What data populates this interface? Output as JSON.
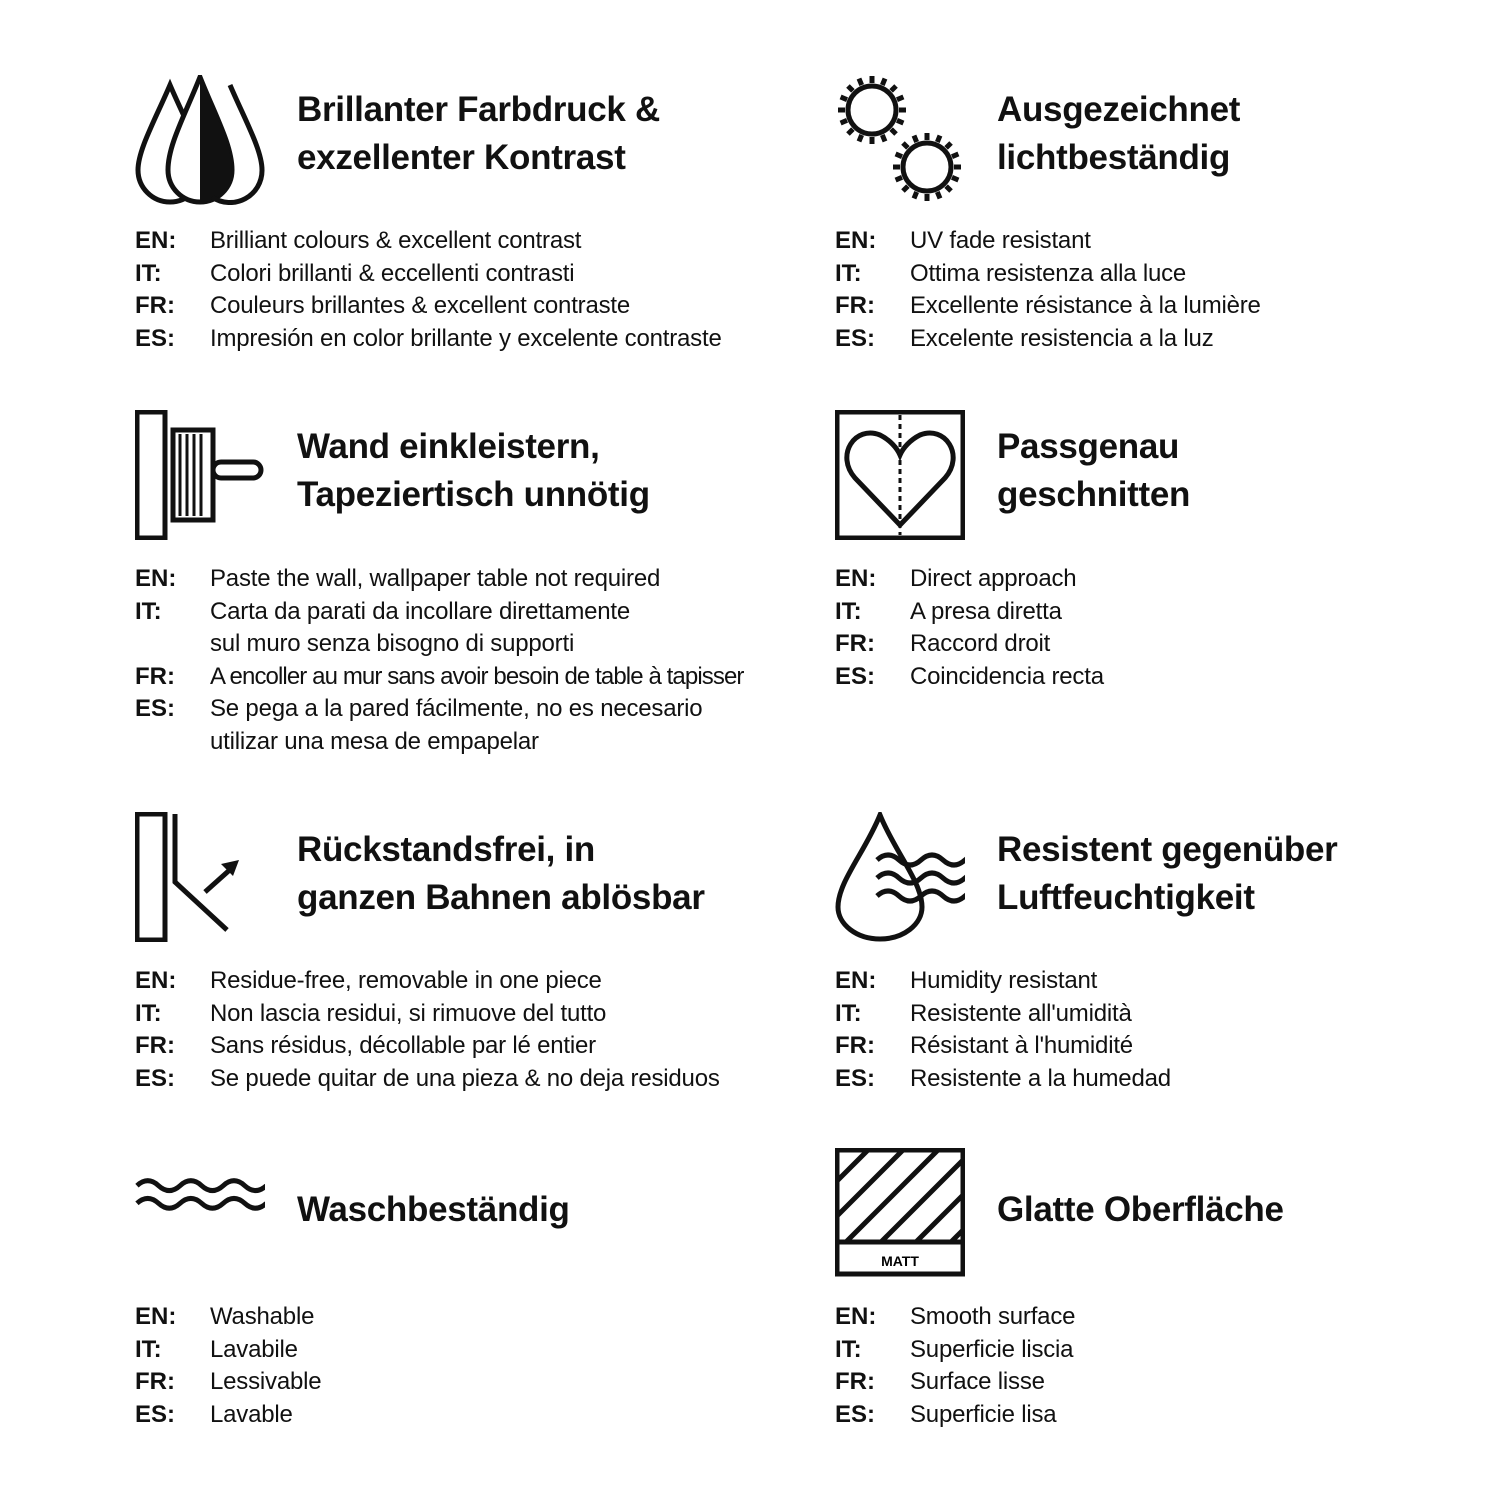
{
  "sections": [
    {
      "icon": "ink-drops-icon",
      "title": [
        "Brillanter Farbdruck &",
        "exzellenter Kontrast"
      ],
      "langs": [
        {
          "label": "EN:",
          "lines": [
            "Brilliant colours & excellent contrast"
          ]
        },
        {
          "label": "IT:",
          "lines": [
            "Colori brillanti & eccellenti contrasti"
          ]
        },
        {
          "label": "FR:",
          "lines": [
            "Couleurs brillantes & excellent contraste"
          ]
        },
        {
          "label": "ES:",
          "lines": [
            "Impresión en color brillante y excelente contraste"
          ]
        }
      ]
    },
    {
      "icon": "sun-gears-icon",
      "title": [
        "Ausgezeichnet",
        "lichtbeständig"
      ],
      "langs": [
        {
          "label": "EN:",
          "lines": [
            "UV fade resistant"
          ]
        },
        {
          "label": "IT:",
          "lines": [
            "Ottima resistenza alla luce"
          ]
        },
        {
          "label": "FR:",
          "lines": [
            "Excellente résistance à la lumière"
          ]
        },
        {
          "label": "ES:",
          "lines": [
            "Excelente resistencia a la luz"
          ]
        }
      ]
    },
    {
      "icon": "paste-brush-wall-icon",
      "title": [
        "Wand einkleistern,",
        "Tapeziertisch unnötig"
      ],
      "langs": [
        {
          "label": "EN:",
          "lines": [
            "Paste the wall, wallpaper table not required"
          ]
        },
        {
          "label": "IT:",
          "lines": [
            "Carta da parati da incollare direttamente",
            "sul muro senza bisogno di supporti"
          ]
        },
        {
          "label": "FR:",
          "lines": [
            "A encoller au mur sans avoir besoin de table à tapisser"
          ]
        },
        {
          "label": "ES:",
          "lines": [
            "Se pega a la pared fácilmente, no es necesario",
            "utilizar una mesa de empapelar"
          ]
        }
      ]
    },
    {
      "icon": "heart-match-icon",
      "title": [
        "Passgenau",
        "geschnitten"
      ],
      "langs": [
        {
          "label": "EN:",
          "lines": [
            "Direct approach"
          ]
        },
        {
          "label": "IT:",
          "lines": [
            "A presa diretta"
          ]
        },
        {
          "label": "FR:",
          "lines": [
            "Raccord droit"
          ]
        },
        {
          "label": "ES:",
          "lines": [
            "Coincidencia recta"
          ]
        }
      ]
    },
    {
      "icon": "peel-off-icon",
      "title": [
        "Rückstandsfrei, in",
        "ganzen Bahnen ablösbar"
      ],
      "langs": [
        {
          "label": "EN:",
          "lines": [
            "Residue-free, removable in one piece"
          ]
        },
        {
          "label": "IT:",
          "lines": [
            "Non lascia residui, si rimuove del tutto"
          ]
        },
        {
          "label": "FR:",
          "lines": [
            "Sans résidus, décollable par lé entier"
          ]
        },
        {
          "label": "ES:",
          "lines": [
            "Se puede quitar de una pieza & no deja residuos"
          ]
        }
      ]
    },
    {
      "icon": "humidity-drop-icon",
      "title": [
        "Resistent gegenüber",
        "Luftfeuchtigkeit"
      ],
      "langs": [
        {
          "label": "EN:",
          "lines": [
            "Humidity resistant"
          ]
        },
        {
          "label": "IT:",
          "lines": [
            "Resistente all'umidità"
          ]
        },
        {
          "label": "FR:",
          "lines": [
            "Résistant à l'humidité"
          ]
        },
        {
          "label": "ES:",
          "lines": [
            "Resistente a la humedad"
          ]
        }
      ]
    },
    {
      "icon": "waves-icon",
      "title": [
        "Waschbeständig"
      ],
      "langs": [
        {
          "label": "EN:",
          "lines": [
            "Washable"
          ]
        },
        {
          "label": "IT:",
          "lines": [
            "Lavabile"
          ]
        },
        {
          "label": "FR:",
          "lines": [
            "Lessivable"
          ]
        },
        {
          "label": "ES:",
          "lines": [
            "Lavable"
          ]
        }
      ]
    },
    {
      "icon": "matt-surface-icon",
      "icon_text": "MATT",
      "title": [
        "Glatte Oberfläche"
      ],
      "langs": [
        {
          "label": "EN:",
          "lines": [
            "Smooth surface"
          ]
        },
        {
          "label": "IT:",
          "lines": [
            "Superficie liscia"
          ]
        },
        {
          "label": "FR:",
          "lines": [
            "Surface lisse"
          ]
        },
        {
          "label": "ES:",
          "lines": [
            "Superficie lisa"
          ]
        }
      ]
    }
  ]
}
